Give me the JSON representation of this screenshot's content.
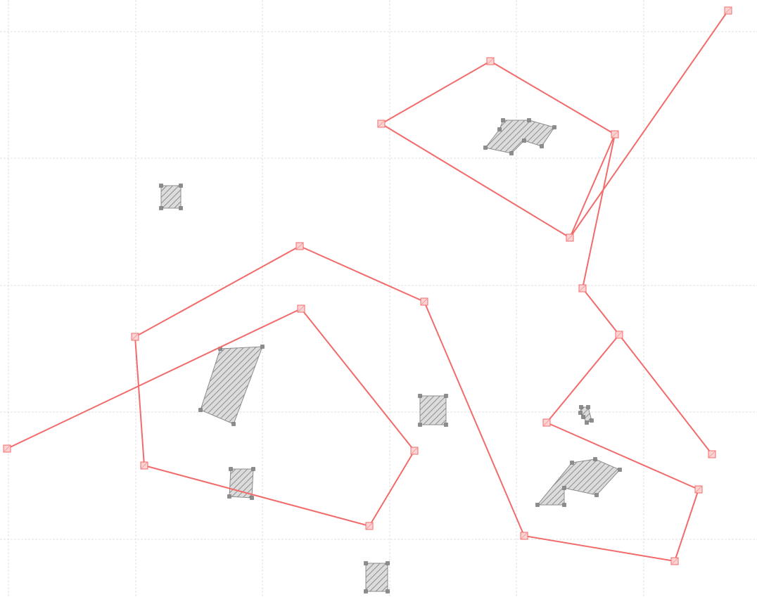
{
  "colors": {
    "background": "#ffffff",
    "grid": "#d9d9d9",
    "path_stroke": "#f26b6b",
    "handle_fill": "#fbd3d3",
    "handle_stroke": "#f26b6b",
    "obstacle_fill": "#dcdcdc",
    "obstacle_hatch": "#7a7a7a",
    "obstacle_stroke": "#8c8c8c",
    "vertex_fill": "#8c8c8c"
  },
  "grid": {
    "visible": true,
    "style": "dashed"
  },
  "icons": {
    "path_vertex": "square-handle-icon",
    "obstacle_vertex": "small-square-vertex-icon"
  },
  "obstacle_style": "diagonal-hatch",
  "path_count": 5,
  "obstacle_count": 9
}
